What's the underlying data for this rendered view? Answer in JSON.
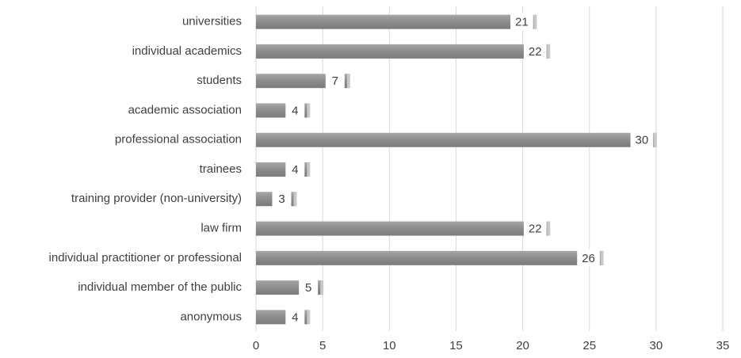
{
  "chart_data": {
    "type": "bar",
    "orientation": "horizontal",
    "categories": [
      "universities",
      "individual academics",
      "students",
      "academic association",
      "professional association",
      "trainees",
      "training provider (non-university)",
      "law firm",
      "individual practitioner or professional",
      "individual member of the public",
      "anonymous"
    ],
    "values": [
      21,
      22,
      7,
      4,
      30,
      4,
      3,
      22,
      26,
      5,
      4
    ],
    "color": "#8c8c8c",
    "xlim": [
      0,
      35
    ],
    "xticks": [
      0,
      5,
      10,
      15,
      20,
      25,
      30,
      35
    ],
    "grid": true
  }
}
